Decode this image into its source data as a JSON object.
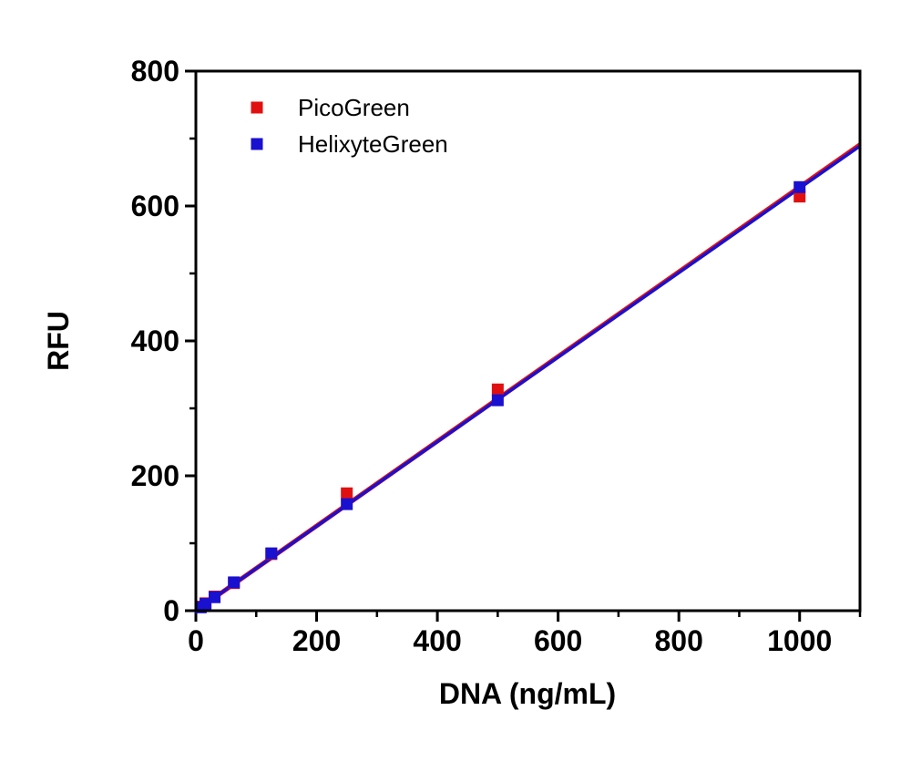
{
  "figure": {
    "background_color": "#ffffff",
    "frame_color": "#000000"
  },
  "chart_data": {
    "type": "scatter",
    "title": "",
    "xlabel": "DNA (ng/mL)",
    "ylabel": "RFU",
    "xlim": [
      0,
      1100
    ],
    "ylim": [
      0,
      800
    ],
    "grid": false,
    "legend_position": "top-left-inside",
    "x_major_ticks": [
      0,
      200,
      400,
      600,
      800,
      1000
    ],
    "x_minor_ticks": [
      100,
      300,
      500,
      700,
      900,
      1100
    ],
    "y_major_ticks": [
      0,
      200,
      400,
      600,
      800
    ],
    "y_minor_ticks": [
      100,
      300,
      500,
      700
    ],
    "series": [
      {
        "name": "PicoGreen",
        "color": "#e11010",
        "marker": "square",
        "x": [
          8,
          16,
          31,
          63,
          125,
          250,
          500,
          1000
        ],
        "y": [
          6,
          11,
          21,
          41,
          84,
          174,
          328,
          614
        ],
        "fit_line": {
          "x": [
            0,
            1100
          ],
          "y": [
            0,
            691
          ]
        }
      },
      {
        "name": "HelixyteGreen",
        "color": "#1a10d0",
        "marker": "square",
        "x": [
          8,
          16,
          31,
          63,
          125,
          250,
          500,
          1000
        ],
        "y": [
          5,
          10,
          20,
          42,
          85,
          158,
          312,
          628
        ],
        "fit_line": {
          "x": [
            0,
            1100
          ],
          "y": [
            0,
            689
          ]
        }
      }
    ]
  }
}
